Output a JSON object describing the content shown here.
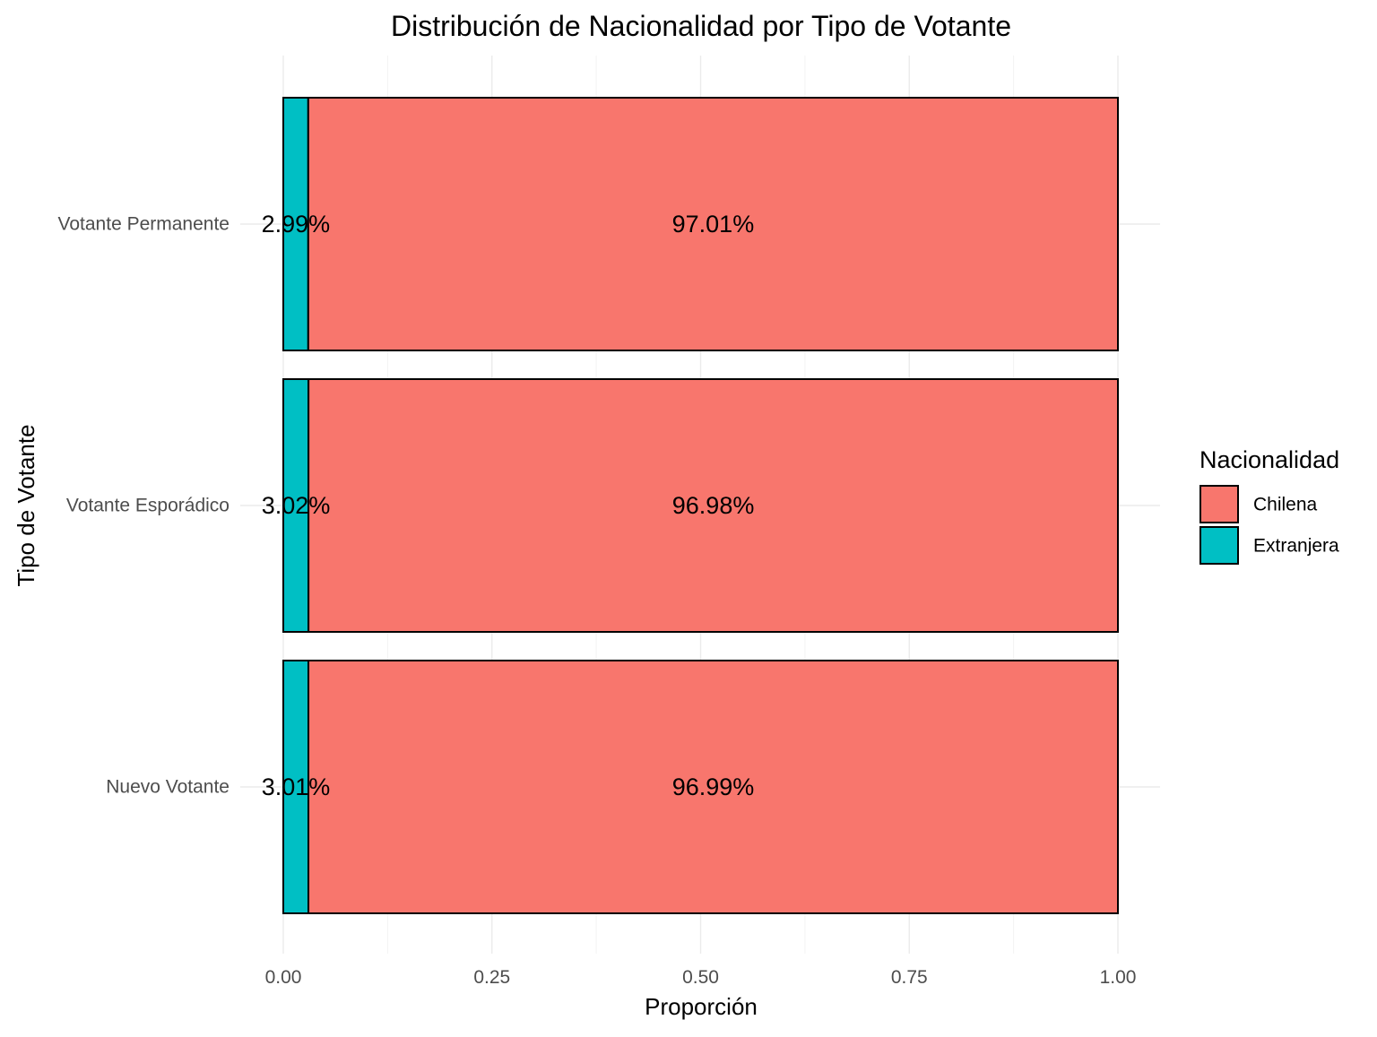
{
  "chart_data": {
    "type": "bar",
    "orientation": "horizontal",
    "stacked": true,
    "title": "Distribución de Nacionalidad por Tipo de Votante",
    "xlabel": "Proporción",
    "ylabel": "Tipo de Votante",
    "xlim": [
      0,
      1
    ],
    "x_ticks": [
      "0.00",
      "0.25",
      "0.50",
      "0.75",
      "1.00"
    ],
    "x_tick_values": [
      0,
      0.25,
      0.5,
      0.75,
      1
    ],
    "categories": [
      "Votante Permanente",
      "Votante Esporádico",
      "Nuevo Votante"
    ],
    "series": [
      {
        "name": "Extranjera",
        "color": "#00BFC4",
        "values": [
          0.0299,
          0.0302,
          0.0301
        ],
        "labels": [
          "2.99%",
          "3.02%",
          "3.01%"
        ]
      },
      {
        "name": "Chilena",
        "color": "#F8766D",
        "values": [
          0.9701,
          0.9698,
          0.9699
        ],
        "labels": [
          "97.01%",
          "96.98%",
          "96.99%"
        ]
      }
    ],
    "legend": {
      "title": "Nacionalidad",
      "position": "right",
      "entries": [
        {
          "label": "Chilena",
          "color": "#F8766D"
        },
        {
          "label": "Extranjera",
          "color": "#00BFC4"
        }
      ]
    },
    "grid": true
  }
}
